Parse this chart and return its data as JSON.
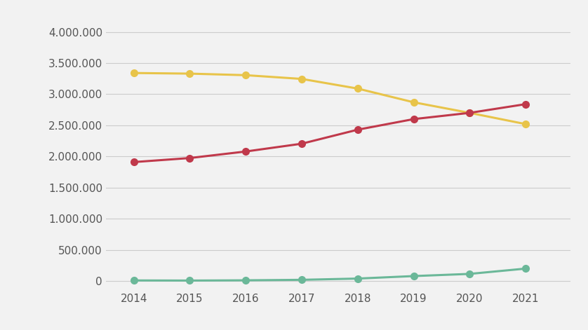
{
  "years": [
    2014,
    2015,
    2016,
    2017,
    2018,
    2019,
    2020,
    2021
  ],
  "yellow": [
    3340000,
    3330000,
    3305000,
    3245000,
    3090000,
    2870000,
    2700000,
    2520000
  ],
  "red": [
    1910000,
    1975000,
    2080000,
    2205000,
    2430000,
    2600000,
    2700000,
    2840000
  ],
  "green": [
    10000,
    8000,
    12000,
    20000,
    40000,
    80000,
    115000,
    200000
  ],
  "yellow_color": "#E8C44A",
  "red_color": "#C0394B",
  "green_color": "#6BB899",
  "background_color": "#F2F2F2",
  "yticks": [
    0,
    500000,
    1000000,
    1500000,
    2000000,
    2500000,
    3000000,
    3500000,
    4000000
  ],
  "ylim": [
    -150000,
    4300000
  ],
  "xlim": [
    2013.5,
    2021.8
  ]
}
